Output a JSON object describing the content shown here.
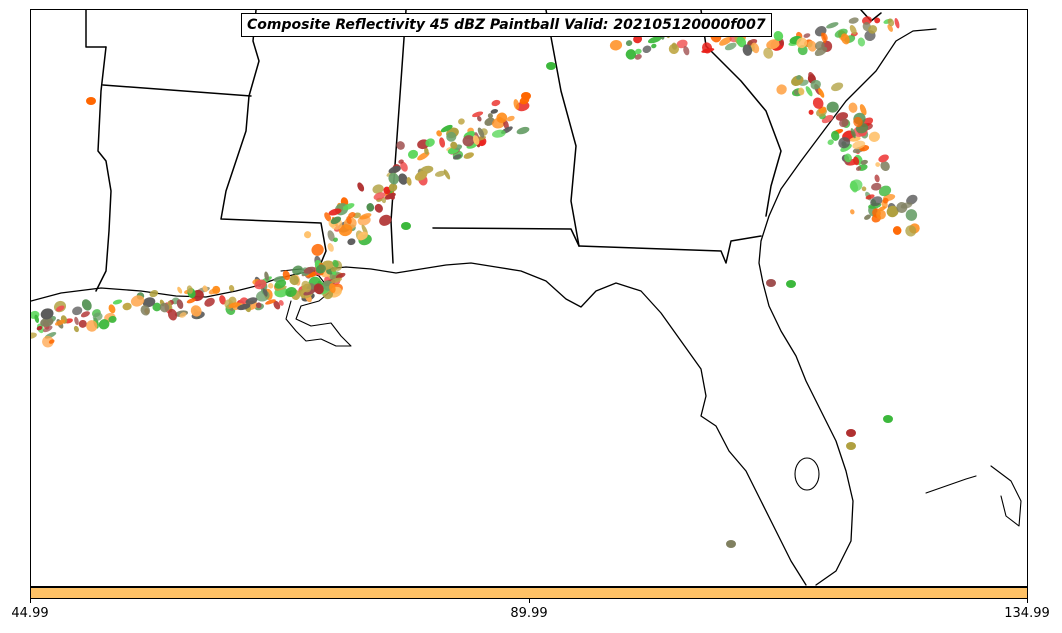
{
  "title": "Composite Reflectivity 45 dBZ Paintball Valid: 202105120000f007",
  "colorbar": {
    "color": "#ffc266",
    "ticks": [
      "44.99",
      "89.99",
      "134.99"
    ]
  },
  "palette": [
    "#ff6600",
    "#ff8c1a",
    "#ffa64d",
    "#ffbf66",
    "#e8201a",
    "#f05050",
    "#a05050",
    "#b03030",
    "#4f8f4f",
    "#6aa06a",
    "#3cb83c",
    "#59d659",
    "#b0a040",
    "#c0a848",
    "#808060",
    "#5a5a5a"
  ],
  "icons": {
    "map": "basemap-outline",
    "swaths": "paintball-swath"
  }
}
